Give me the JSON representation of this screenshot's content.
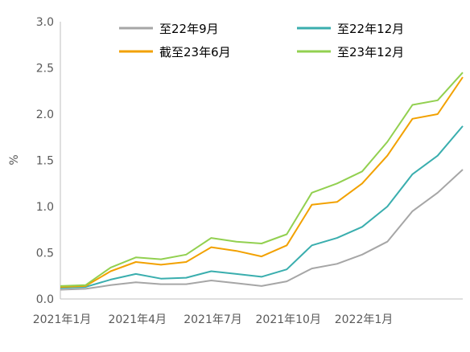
{
  "chart_data": {
    "type": "line",
    "title": "",
    "xlabel": "",
    "ylabel": "%",
    "ylim": [
      0.0,
      3.0
    ],
    "yticks": [
      "0.0",
      "0.5",
      "1.0",
      "1.5",
      "2.0",
      "2.5",
      "3.0"
    ],
    "xticks": [
      "2021年1月",
      "2021年4月",
      "2021年7月",
      "2021年10月",
      "2022年1月"
    ],
    "x_range": [
      "2021-01",
      "2022-05"
    ],
    "legend_position": "top",
    "x": [
      "2021-01",
      "2021-02",
      "2021-03",
      "2021-04",
      "2021-05",
      "2021-06",
      "2021-07",
      "2021-08",
      "2021-09",
      "2021-10",
      "2021-11",
      "2021-12",
      "2022-01",
      "2022-02",
      "2022-03",
      "2022-04",
      "2022-05"
    ],
    "series": [
      {
        "name": "至22年9月",
        "color": "#a6a6a6",
        "values": [
          0.1,
          0.11,
          0.15,
          0.18,
          0.16,
          0.16,
          0.2,
          0.17,
          0.14,
          0.19,
          0.33,
          0.38,
          0.48,
          0.62,
          0.95,
          1.15,
          1.4
        ]
      },
      {
        "name": "至22年12月",
        "color": "#3aaeae",
        "values": [
          0.12,
          0.13,
          0.21,
          0.27,
          0.22,
          0.23,
          0.3,
          0.27,
          0.24,
          0.32,
          0.58,
          0.66,
          0.78,
          1.0,
          1.35,
          1.55,
          1.87
        ]
      },
      {
        "name": "截至23年6月",
        "color": "#f2a100",
        "values": [
          0.13,
          0.14,
          0.3,
          0.4,
          0.37,
          0.4,
          0.56,
          0.52,
          0.46,
          0.58,
          1.02,
          1.05,
          1.25,
          1.55,
          1.95,
          2.0,
          2.4
        ]
      },
      {
        "name": "至23年12月",
        "color": "#92d050",
        "values": [
          0.14,
          0.15,
          0.34,
          0.45,
          0.43,
          0.48,
          0.66,
          0.62,
          0.6,
          0.7,
          1.15,
          1.25,
          1.38,
          1.7,
          2.1,
          2.15,
          2.45
        ]
      }
    ]
  }
}
